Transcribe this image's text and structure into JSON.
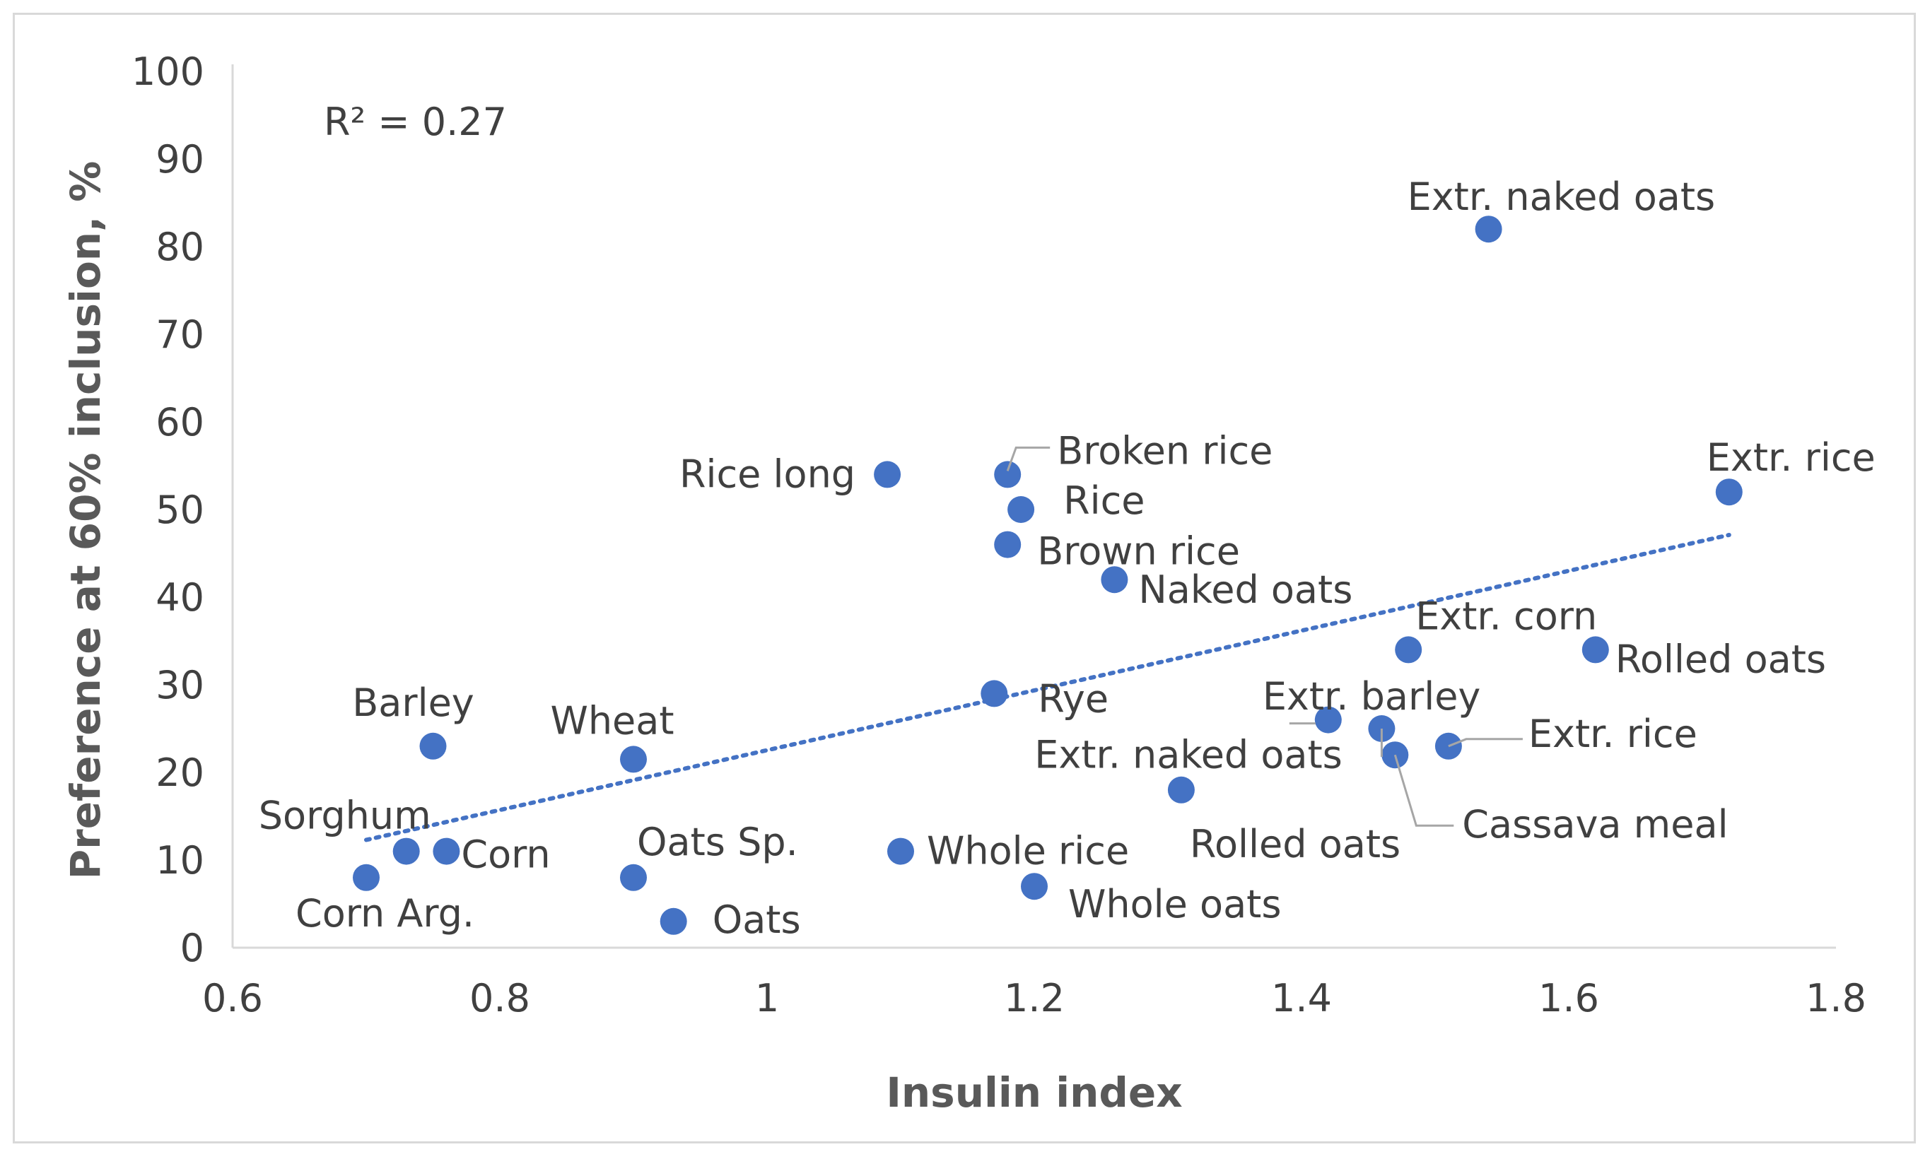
{
  "chart_data": {
    "type": "scatter",
    "title": "",
    "xlabel": "Insulin index",
    "ylabel": "Preference at 60% inclusion, %",
    "xlim": [
      0.6,
      1.8
    ],
    "ylim": [
      0,
      100
    ],
    "x_ticks": [
      "0.6",
      "0.8",
      "1",
      "1.2",
      "1.4",
      "1.6",
      "1.8"
    ],
    "y_ticks": [
      "0",
      "10",
      "20",
      "30",
      "40",
      "50",
      "60",
      "70",
      "80",
      "90",
      "100"
    ],
    "grid": false,
    "legend": "none",
    "marker_color": "#4472c4",
    "trendline": {
      "type": "linear",
      "style": "dotted",
      "color": "#4472c4",
      "r_squared_label": "R² = 0.27",
      "x_range": [
        0.7,
        1.72
      ],
      "y_at_range": [
        12.3,
        47.1
      ]
    },
    "points": [
      {
        "label": "Extr. naked oats",
        "x": 1.54,
        "y": 82
      },
      {
        "label": "Extr. rice",
        "x": 1.72,
        "y": 52
      },
      {
        "label": "Rice long",
        "x": 1.09,
        "y": 54
      },
      {
        "label": "Broken rice",
        "x": 1.18,
        "y": 54
      },
      {
        "label": "Rice",
        "x": 1.19,
        "y": 50
      },
      {
        "label": "Brown rice",
        "x": 1.18,
        "y": 46
      },
      {
        "label": "Naked oats",
        "x": 1.26,
        "y": 42
      },
      {
        "label": "Extr. corn",
        "x": 1.48,
        "y": 34
      },
      {
        "label": "Rolled oats",
        "x": 1.62,
        "y": 34
      },
      {
        "label": "Rye",
        "x": 1.17,
        "y": 29
      },
      {
        "label": "Extr. barley",
        "x": 1.46,
        "y": 25
      },
      {
        "label": "Extr. naked oats",
        "x": 1.42,
        "y": 26
      },
      {
        "label": "Extr. rice",
        "x": 1.51,
        "y": 23
      },
      {
        "label": "Cassava meal",
        "x": 1.47,
        "y": 22
      },
      {
        "label": "Rolled oats",
        "x": 1.31,
        "y": 18
      },
      {
        "label": "Barley",
        "x": 0.75,
        "y": 23
      },
      {
        "label": "Wheat",
        "x": 0.9,
        "y": 21.5
      },
      {
        "label": "Sorghum",
        "x": 0.73,
        "y": 11
      },
      {
        "label": "Corn",
        "x": 0.76,
        "y": 11
      },
      {
        "label": "Corn Arg.",
        "x": 0.7,
        "y": 8
      },
      {
        "label": "Oats Sp.",
        "x": 0.9,
        "y": 8
      },
      {
        "label": "Oats",
        "x": 0.93,
        "y": 3
      },
      {
        "label": "Whole rice",
        "x": 1.1,
        "y": 11
      },
      {
        "label": "Whole oats",
        "x": 1.2,
        "y": 7
      }
    ]
  }
}
